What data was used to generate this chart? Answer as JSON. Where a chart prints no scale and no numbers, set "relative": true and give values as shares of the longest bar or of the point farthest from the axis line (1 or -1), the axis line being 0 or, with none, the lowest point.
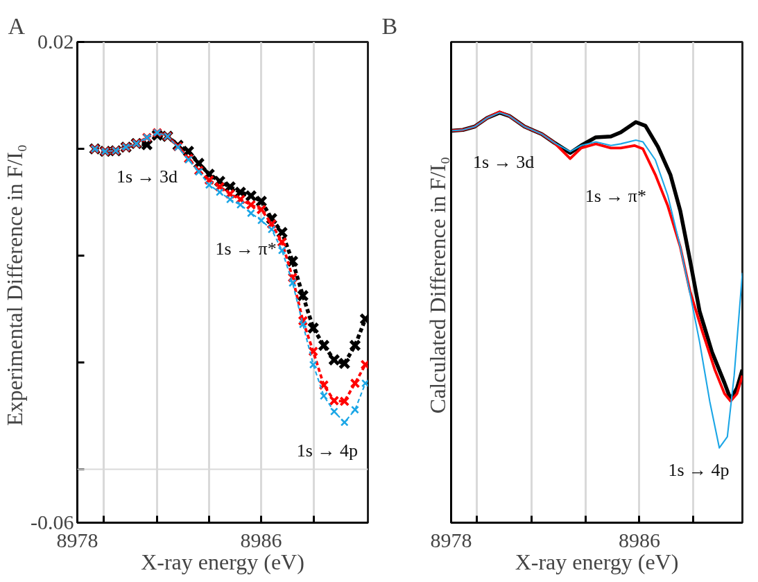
{
  "chart_data": [
    {
      "type": "line",
      "title": "A",
      "xlabel": "X-ray energy (eV)",
      "ylabel": "Experimental  Difference in F/I₀",
      "marker": "cross",
      "line_style": "dashed",
      "grid": "x",
      "xlim": [
        8978,
        8990.65
      ],
      "xticks": [
        {
          "value": 8978,
          "label": "8978"
        },
        {
          "value": 8979.16,
          "label": null
        },
        {
          "value": 8981.46,
          "label": null
        },
        {
          "value": 8983.73,
          "label": null
        },
        8986,
        {
          "value": 8988.29,
          "label": null
        }
      ],
      "ylim": [
        -0.06,
        0.02
      ],
      "yticks": [
        -0.06,
        {
          "value": -0.0511,
          "label": null
        },
        {
          "value": -0.0333,
          "label": null
        },
        {
          "value": -0.0155,
          "label": null
        },
        {
          "value": 0.0022,
          "label": null
        },
        0.02
      ],
      "x": [
        8978.76,
        8979.21,
        8979.67,
        8980.12,
        8980.57,
        8981.03,
        8981.48,
        8981.93,
        8982.38,
        8982.84,
        8983.29,
        8983.74,
        8984.2,
        8984.65,
        8985.1,
        8985.56,
        8986.01,
        8986.46,
        8986.91,
        8987.37,
        8987.82,
        8988.27,
        8988.73,
        8989.18,
        8989.63,
        8990.09,
        8990.54
      ],
      "series": [
        {
          "color": "#000000",
          "values": [
            0.0022,
            0.0018,
            0.0019,
            0.0025,
            0.0031,
            0.0029,
            0.0045,
            0.0043,
            0.0028,
            0.0018,
            -0.0002,
            -0.002,
            -0.0032,
            -0.0041,
            -0.005,
            -0.0056,
            -0.0065,
            -0.0094,
            -0.0117,
            -0.0165,
            -0.0222,
            -0.0276,
            -0.0305,
            -0.0329,
            -0.0335,
            -0.0305,
            -0.0261
          ]
        },
        {
          "color": "#ff0000",
          "values": [
            0.0022,
            0.0018,
            0.0019,
            0.0025,
            0.0031,
            0.0041,
            0.0049,
            0.0043,
            0.0026,
            0.0006,
            -0.0014,
            -0.003,
            -0.0041,
            -0.0053,
            -0.0062,
            -0.0071,
            -0.0079,
            -0.0103,
            -0.0133,
            -0.0192,
            -0.0264,
            -0.0315,
            -0.0371,
            -0.0397,
            -0.0398,
            -0.0368,
            -0.0337
          ]
        },
        {
          "color": "#1ba6e6",
          "values": [
            0.0022,
            0.0018,
            0.0019,
            0.0025,
            0.0031,
            0.0041,
            0.0049,
            0.0043,
            0.0025,
            0.0004,
            -0.0016,
            -0.0038,
            -0.005,
            -0.0062,
            -0.0071,
            -0.0085,
            -0.0097,
            -0.0112,
            -0.0147,
            -0.0201,
            -0.027,
            -0.0337,
            -0.0389,
            -0.0415,
            -0.0433,
            -0.0412,
            -0.0368
          ]
        }
      ],
      "ref_lines": [
        {
          "axis": "y",
          "value": -0.0511,
          "color": "#d9d9d9"
        }
      ],
      "annotations": [
        "1s → 3d",
        "1s → π*",
        "1s → 4p"
      ]
    },
    {
      "type": "line",
      "title": "B",
      "xlabel": "X-ray energy (eV)",
      "ylabel": "Calculated  Difference in F/I₀",
      "relative": true,
      "grid": "x",
      "xlim": [
        8978,
        8990.38
      ],
      "xticks": [
        8978,
        {
          "value": 8979.09,
          "label": null
        },
        {
          "value": 8981.41,
          "label": null
        },
        {
          "value": 8983.71,
          "label": null
        },
        8986,
        {
          "value": 8988.29,
          "label": null
        }
      ],
      "series": [
        {
          "color": "#000000",
          "x": [
            8978.0,
            8978.5,
            8979.0,
            8979.53,
            8980.06,
            8980.47,
            8981.12,
            8981.85,
            8982.38,
            8983.06,
            8983.53,
            8984.15,
            8984.79,
            8985.21,
            8985.85,
            8986.26,
            8986.79,
            8987.32,
            8987.74,
            8988.15,
            8988.56,
            8989.09,
            8989.62,
            8989.88,
            8990.15,
            8990.38
          ],
          "values": [
            0.954,
            0.956,
            0.964,
            0.985,
            0.998,
            0.99,
            0.964,
            0.946,
            0.925,
            0.9,
            0.918,
            0.938,
            0.94,
            0.95,
            0.975,
            0.966,
            0.915,
            0.847,
            0.759,
            0.64,
            0.515,
            0.415,
            0.34,
            0.3,
            0.328,
            0.372
          ]
        },
        {
          "color": "#ff0000",
          "x": [
            8978.0,
            8978.5,
            8979.0,
            8979.53,
            8980.06,
            8980.47,
            8981.12,
            8981.85,
            8982.38,
            8983.06,
            8983.53,
            8984.15,
            8984.79,
            8985.21,
            8985.79,
            8986.15,
            8986.68,
            8987.21,
            8987.74,
            8988.15,
            8988.68,
            8989.21,
            8989.62,
            8989.88,
            8990.15,
            8990.38
          ],
          "values": [
            0.954,
            0.956,
            0.964,
            0.985,
            1.0,
            0.99,
            0.964,
            0.946,
            0.925,
            0.886,
            0.912,
            0.922,
            0.912,
            0.912,
            0.918,
            0.91,
            0.847,
            0.771,
            0.671,
            0.564,
            0.465,
            0.372,
            0.314,
            0.296,
            0.314,
            0.358
          ]
        },
        {
          "color": "#1ba6e6",
          "x": [
            8978.0,
            8978.5,
            8979.0,
            8979.53,
            8980.06,
            8980.47,
            8981.12,
            8981.85,
            8982.38,
            8983.06,
            8983.53,
            8984.15,
            8984.79,
            8985.21,
            8985.85,
            8986.15,
            8986.68,
            8987.21,
            8987.74,
            8988.15,
            8988.56,
            8988.99,
            8989.4,
            8989.74,
            8990.03,
            8990.38
          ],
          "values": [
            0.954,
            0.956,
            0.964,
            0.985,
            0.998,
            0.99,
            0.964,
            0.946,
            0.925,
            0.903,
            0.918,
            0.927,
            0.918,
            0.922,
            0.931,
            0.927,
            0.883,
            0.796,
            0.671,
            0.559,
            0.44,
            0.296,
            0.182,
            0.209,
            0.358,
            0.608
          ]
        }
      ],
      "annotations": [
        "1s → 3d",
        "1s → π*",
        "1s → 4p"
      ]
    }
  ]
}
